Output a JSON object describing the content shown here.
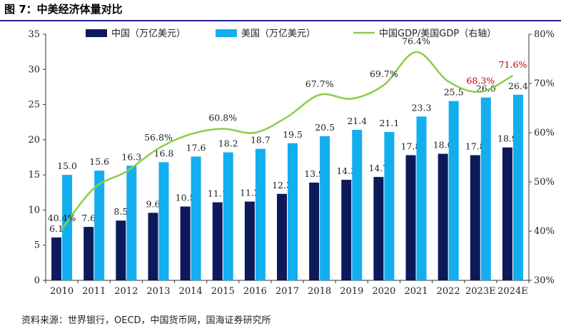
{
  "figure": {
    "title": "图 7：中美经济体量对比",
    "source": "资料来源：世界银行，OECD，中国货币网，国海证券研究所"
  },
  "colors": {
    "china_bar": "#0c1a5c",
    "us_bar": "#12aef0",
    "ratio_line": "#8ccd48",
    "estimate_label": "#c00000",
    "text": "#222222"
  },
  "chart_data": {
    "type": "bar",
    "categories": [
      "2010",
      "2011",
      "2012",
      "2013",
      "2014",
      "2015",
      "2016",
      "2017",
      "2018",
      "2019",
      "2020",
      "2021",
      "2022",
      "2023E",
      "2024E"
    ],
    "series": [
      {
        "name": "中国（万亿美元）",
        "kind": "bar",
        "axis": "left",
        "values": [
          6.1,
          7.6,
          8.5,
          9.6,
          10.5,
          11.1,
          11.2,
          12.3,
          13.9,
          14.3,
          14.7,
          17.8,
          18.0,
          17.8,
          18.9
        ],
        "labels": [
          "6.1",
          "7.6",
          "8.5",
          "9.6",
          "10.5",
          "11.1",
          "11.2",
          "12.3",
          "13.9",
          "14.3",
          "14.7",
          "17.8",
          "18.0",
          "17.8",
          "18.9"
        ]
      },
      {
        "name": "美国（万亿美元）",
        "kind": "bar",
        "axis": "left",
        "values": [
          15.0,
          15.6,
          16.3,
          16.8,
          17.6,
          18.2,
          18.7,
          19.5,
          20.5,
          21.4,
          21.1,
          23.3,
          25.5,
          26.0,
          26.4
        ],
        "labels": [
          "15.0",
          "15.6",
          "16.3",
          "16.8",
          "17.6",
          "18.2",
          "18.7",
          "19.5",
          "20.5",
          "21.4",
          "21.1",
          "23.3",
          "25.5",
          "26.0",
          "26.4"
        ]
      },
      {
        "name": "中国GDP/美国GDP（右轴）",
        "kind": "line",
        "axis": "right",
        "values": [
          40.4,
          48.7,
          52.1,
          56.8,
          59.7,
          60.8,
          60.0,
          63.2,
          67.7,
          66.9,
          69.7,
          76.4,
          70.4,
          68.3,
          71.6
        ],
        "point_labels": [
          {
            "index": 0,
            "text": "40.4%"
          },
          {
            "index": 3,
            "text": "56.8%"
          },
          {
            "index": 5,
            "text": "60.8%"
          },
          {
            "index": 8,
            "text": "67.7%"
          },
          {
            "index": 10,
            "text": "69.7%"
          },
          {
            "index": 11,
            "text": "76.4%"
          },
          {
            "index": 13,
            "text": "68.3%",
            "estimate": true
          },
          {
            "index": 14,
            "text": "71.6%",
            "estimate": true
          }
        ]
      }
    ],
    "ylim": [
      0,
      35
    ],
    "yticks": [
      "0",
      "5",
      "10",
      "15",
      "20",
      "25",
      "30",
      "35"
    ],
    "y2lim": [
      30,
      80
    ],
    "y2ticks": [
      "30%",
      "40%",
      "50%",
      "60%",
      "70%",
      "80%"
    ],
    "legend": "top",
    "grid": false
  }
}
